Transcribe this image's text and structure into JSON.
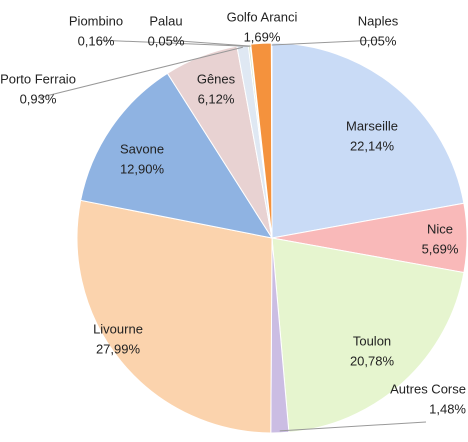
{
  "chart_data": {
    "type": "pie",
    "categories": [
      "Marseille",
      "Nice",
      "Toulon",
      "Autres Corse",
      "Livourne",
      "Savone",
      "Gênes",
      "Porto Ferraio",
      "Piombino",
      "Palau",
      "Golfo Aranci",
      "Naples"
    ],
    "values": [
      22.14,
      5.69,
      20.78,
      1.48,
      27.99,
      12.9,
      6.12,
      0.93,
      0.16,
      0.05,
      1.69,
      0.05
    ],
    "value_labels": [
      "22,14%",
      "5,69%",
      "20,78%",
      "1,48%",
      "27,99%",
      "12,90%",
      "6,12%",
      "0,93%",
      "0,16%",
      "0,05%",
      "1,69%",
      "0,05%"
    ],
    "colors": [
      "#c9dbf6",
      "#f9b9b9",
      "#e6f5cf",
      "#cbbde3",
      "#fbd3ad",
      "#8fb3e2",
      "#e8d2d2",
      "#dfe8f3",
      "#d9e4c9",
      "#f3dcc8",
      "#f4923d",
      "#dddddd"
    ]
  }
}
